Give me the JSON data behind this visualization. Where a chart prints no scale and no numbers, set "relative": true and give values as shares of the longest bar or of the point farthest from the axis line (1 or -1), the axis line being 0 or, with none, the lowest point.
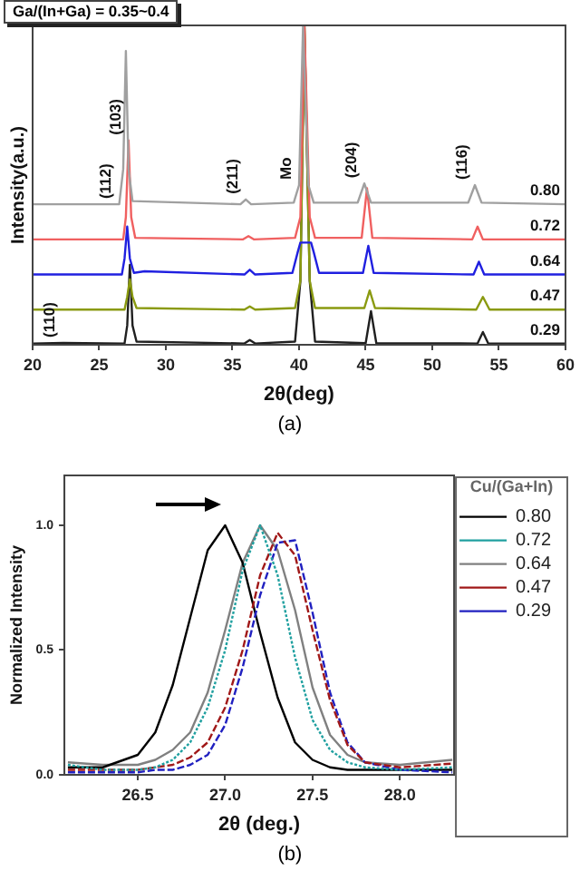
{
  "chart_data": [
    {
      "type": "line",
      "title": "Ga/(In+Ga) = 0.35~0.4",
      "xlabel": "2θ(deg)",
      "ylabel": "Intensity(a.u.)",
      "relative": true,
      "tick_labels": "x",
      "xlim": [
        20,
        60
      ],
      "xticks": [
        20,
        25,
        30,
        35,
        40,
        45,
        50,
        55,
        60
      ],
      "grid": false,
      "legend": false,
      "marker": "none",
      "line_style": "solid",
      "annotations": [
        {
          "text": "(112)",
          "x": 26.5,
          "y": 0.44
        },
        {
          "text": "(103)",
          "x": 27.2,
          "y": 0.64
        },
        {
          "text": "(211)",
          "x": 36.0,
          "y": 0.455
        },
        {
          "text": "Mo",
          "x": 40.0,
          "y": 0.5
        },
        {
          "text": "(204)",
          "x": 44.9,
          "y": 0.505
        },
        {
          "text": "(116)",
          "x": 53.2,
          "y": 0.5
        },
        {
          "text": "(110)",
          "x": 22.3,
          "y": 0.006
        },
        "(a)"
      ],
      "series": [
        {
          "name": "0.80",
          "color": "#a0a0a0",
          "x": [
            20,
            26.5,
            26.8,
            27.0,
            27.2,
            27.5,
            35.6,
            36.0,
            36.4,
            39.6,
            40.0,
            40.3,
            40.7,
            41.1,
            44.4,
            44.9,
            45.4,
            52.7,
            53.2,
            53.7,
            60
          ],
          "values": [
            0.44,
            0.44,
            0.55,
            0.92,
            0.55,
            0.45,
            0.44,
            0.455,
            0.44,
            0.445,
            0.5,
            1,
            0.5,
            0.445,
            0.445,
            0.505,
            0.445,
            0.445,
            0.5,
            0.445,
            0.44
          ]
        },
        {
          "name": "0.72",
          "color": "#f06060",
          "x": [
            20,
            26.8,
            27.0,
            27.2,
            27.4,
            27.7,
            35.8,
            36.2,
            36.6,
            39.7,
            40.1,
            40.4,
            40.8,
            41.2,
            44.7,
            45.1,
            45.5,
            53.0,
            53.4,
            53.8,
            60
          ],
          "values": [
            0.33,
            0.33,
            0.4,
            0.64,
            0.4,
            0.335,
            0.33,
            0.34,
            0.33,
            0.335,
            0.4,
            1,
            0.4,
            0.335,
            0.335,
            0.49,
            0.335,
            0.33,
            0.37,
            0.33,
            0.33
          ]
        },
        {
          "name": "0.64",
          "color": "#2020e0",
          "x": [
            20,
            26.7,
            26.9,
            27.1,
            27.3,
            27.6,
            28.4,
            35.9,
            36.3,
            36.7,
            39.5,
            39.9,
            40.1,
            40.9,
            41.1,
            41.5,
            44.8,
            45.2,
            45.6,
            53.1,
            53.5,
            53.9,
            60
          ],
          "values": [
            0.22,
            0.22,
            0.27,
            0.37,
            0.27,
            0.225,
            0.23,
            0.22,
            0.235,
            0.22,
            0.225,
            0.29,
            0.32,
            0.32,
            0.29,
            0.225,
            0.225,
            0.31,
            0.225,
            0.22,
            0.26,
            0.22,
            0.22
          ]
        },
        {
          "name": "0.47",
          "color": "#8a9a10",
          "x": [
            20,
            26.9,
            27.1,
            27.3,
            27.5,
            27.8,
            35.9,
            36.3,
            36.7,
            39.7,
            40.1,
            40.4,
            40.8,
            41.2,
            44.9,
            45.3,
            45.7,
            53.3,
            53.8,
            54.3,
            60
          ],
          "values": [
            0.11,
            0.11,
            0.15,
            0.205,
            0.15,
            0.115,
            0.11,
            0.12,
            0.11,
            0.115,
            0.2,
            1,
            0.2,
            0.115,
            0.115,
            0.17,
            0.115,
            0.11,
            0.15,
            0.11,
            0.11
          ]
        },
        {
          "name": "0.29",
          "color": "#202020",
          "x": [
            20,
            22.3,
            26.9,
            27.1,
            27.3,
            27.5,
            27.8,
            35.9,
            36.3,
            36.7,
            39.7,
            40.1,
            40.4,
            40.8,
            41.2,
            45.0,
            45.4,
            45.8,
            53.4,
            53.8,
            54.2,
            60
          ],
          "values": [
            0.004,
            0.006,
            0.004,
            0.06,
            0.25,
            0.06,
            0.01,
            0.004,
            0.015,
            0.004,
            0.01,
            0.2,
            1,
            0.2,
            0.01,
            0.005,
            0.105,
            0.005,
            0.004,
            0.04,
            0.004,
            0.004
          ]
        }
      ]
    },
    {
      "type": "line",
      "xlabel": "2θ (deg.)",
      "ylabel": "Normalized Intensity",
      "legend_title": "Cu/(Ga+In)",
      "legend": "top right",
      "grid": false,
      "marker": "none",
      "xlim": [
        26.08,
        28.31
      ],
      "xticks": [
        {
          "value": 26.5,
          "label": "26.5"
        },
        {
          "value": 27,
          "label": "27.0"
        },
        {
          "value": 27.5,
          "label": "27.5"
        },
        {
          "value": 28,
          "label": "28.0"
        }
      ],
      "ylim": [
        0,
        1.2
      ],
      "yticks": [
        {
          "value": 0,
          "label": "0.0"
        },
        {
          "value": 0.5,
          "label": "0.5"
        },
        {
          "value": 1,
          "label": "1.0"
        }
      ],
      "annotations": [
        "(b)"
      ],
      "x": [
        26.1,
        26.3,
        26.5,
        26.6,
        26.7,
        26.8,
        26.9,
        27.0,
        27.1,
        27.2,
        27.3,
        27.4,
        27.5,
        27.6,
        27.7,
        27.8,
        28.0,
        28.3
      ],
      "series": [
        {
          "name": "0.80",
          "color": "#000000",
          "line_style": "solid",
          "values": [
            0.03,
            0.03,
            0.08,
            0.17,
            0.36,
            0.63,
            0.9,
            1.0,
            0.85,
            0.57,
            0.31,
            0.13,
            0.06,
            0.03,
            0.02,
            0.02,
            0.02,
            0.02
          ]
        },
        {
          "name": "0.72",
          "color": "#20a0a0",
          "line_style": "dotted",
          "values": [
            0.04,
            0.02,
            0.02,
            0.03,
            0.06,
            0.13,
            0.27,
            0.5,
            0.82,
            1.0,
            0.8,
            0.47,
            0.22,
            0.1,
            0.05,
            0.03,
            0.02,
            0.03
          ]
        },
        {
          "name": "0.64",
          "color": "#808080",
          "line_style": "solid",
          "values": [
            0.05,
            0.04,
            0.04,
            0.06,
            0.1,
            0.17,
            0.33,
            0.58,
            0.85,
            1.0,
            0.9,
            0.66,
            0.35,
            0.16,
            0.08,
            0.05,
            0.04,
            0.06
          ]
        },
        {
          "name": "0.47",
          "color": "#a01818",
          "line_style": "dashed",
          "values": [
            0.02,
            0.02,
            0.02,
            0.03,
            0.04,
            0.07,
            0.13,
            0.27,
            0.5,
            0.8,
            0.97,
            0.88,
            0.58,
            0.3,
            0.12,
            0.05,
            0.03,
            0.045
          ]
        },
        {
          "name": "0.29",
          "color": "#2020c0",
          "line_style": "dashed",
          "values": [
            0.01,
            0.01,
            0.01,
            0.02,
            0.02,
            0.04,
            0.08,
            0.2,
            0.43,
            0.72,
            0.93,
            0.94,
            0.65,
            0.33,
            0.13,
            0.05,
            0.02,
            0.01
          ]
        }
      ]
    }
  ]
}
